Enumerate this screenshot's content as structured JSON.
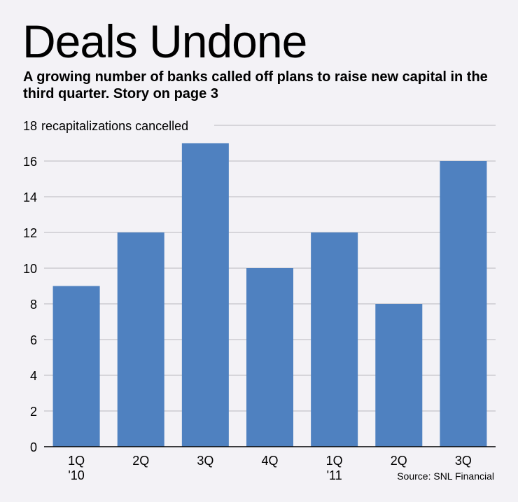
{
  "chart_data": {
    "type": "bar",
    "title": "Deals Undone",
    "subtitle": "A growing number of banks called off plans to raise new capital in the third quarter. Story on page 3",
    "unit_label": "recapitalizations cancelled",
    "categories": [
      [
        "1Q",
        "'10"
      ],
      [
        "2Q"
      ],
      [
        "3Q"
      ],
      [
        "4Q"
      ],
      [
        "1Q",
        "'11"
      ],
      [
        "2Q"
      ],
      [
        "3Q"
      ]
    ],
    "values": [
      9,
      12,
      17,
      10,
      12,
      8,
      16
    ],
    "ylim": [
      0,
      18
    ],
    "yticks": [
      0,
      2,
      4,
      6,
      8,
      10,
      12,
      14,
      16,
      18
    ],
    "grid": true,
    "bar_color": "#4f81c0",
    "source": "Source: SNL Financial"
  }
}
